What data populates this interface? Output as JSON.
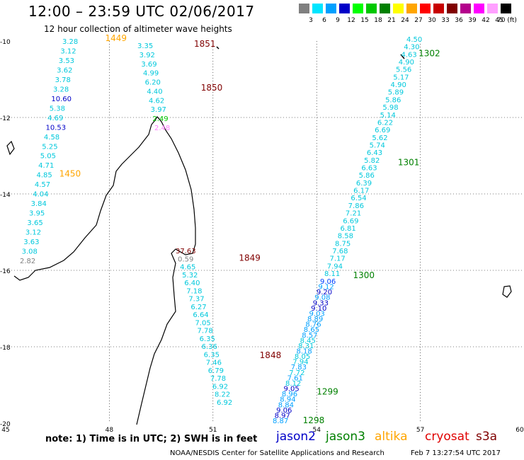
{
  "header": {
    "title": "12:00 – 23:59 UTC 02/06/2017",
    "subtitle": "12 hour collection of altimeter wave heights"
  },
  "legend": {
    "labels": [
      "3",
      "6",
      "9",
      "12",
      "15",
      "18",
      "21",
      "24",
      "27",
      "30",
      "33",
      "36",
      "39",
      "42",
      "45",
      "70"
    ],
    "unit": "(ft)",
    "colors": [
      "#808080",
      "#00e5ff",
      "#00a0ff",
      "#0000c8",
      "#00ff00",
      "#00c800",
      "#008000",
      "#ffff00",
      "#ffa500",
      "#ff0000",
      "#c80000",
      "#800000",
      "#b4008c",
      "#ff00ff",
      "#ffa0ff",
      "#000000"
    ]
  },
  "axes": {
    "x_ticks": [
      "45",
      "48",
      "51",
      "54",
      "57",
      "60"
    ],
    "y_ticks": [
      "-10",
      "-12",
      "-14",
      "-16",
      "-18",
      "-20"
    ]
  },
  "tracks": {
    "pass_1449": {
      "label": "1449",
      "color": "#ffa500",
      "lon": 47.88,
      "lat": -10.0
    },
    "pass_1450": {
      "label": "1450",
      "color": "#ffa500",
      "lon": 46.55,
      "lat": -13.55
    },
    "pass_1851": {
      "label": "1851",
      "color": "#800000",
      "lon": 50.45,
      "lat": -10.15
    },
    "pass_1850": {
      "label": "1850",
      "color": "#800000",
      "lon": 50.65,
      "lat": -11.3
    },
    "pass_1849": {
      "label": "1849",
      "color": "#800000",
      "lon": 51.75,
      "lat": -15.75
    },
    "pass_1848": {
      "label": "1848",
      "color": "#800000",
      "lon": 52.35,
      "lat": -18.3
    },
    "pass_1302": {
      "label": "1302",
      "color": "#008000",
      "lon": 56.95,
      "lat": -10.4
    },
    "pass_1301": {
      "label": "1301",
      "color": "#008000",
      "lon": 56.35,
      "lat": -13.25
    },
    "pass_1300": {
      "label": "1300",
      "color": "#008000",
      "lon": 55.05,
      "lat": -16.2
    },
    "pass_1299": {
      "label": "1299",
      "color": "#008000",
      "lon": 54.0,
      "lat": -19.25
    },
    "pass_1298": {
      "label": "1298",
      "color": "#008000",
      "lon": 53.6,
      "lat": -20.0
    }
  },
  "track_west": {
    "values": [
      "3.28",
      "3.12",
      "3.53",
      "3.62",
      "3.78",
      "3.28",
      "10.60",
      "5.38",
      "4.69",
      "10.53",
      "4.58",
      "5.25",
      "5.05",
      "4.71",
      "4.85",
      "4.57",
      "4.04",
      "3.84",
      "3.95",
      "3.65",
      "3.12",
      "3.63",
      "3.08",
      "2.82"
    ],
    "colors": [
      "#00c8dc",
      "#00c8dc",
      "#00c8dc",
      "#00c8dc",
      "#00c8dc",
      "#00c8dc",
      "#0000c8",
      "#00c8dc",
      "#00c8dc",
      "#0000c8",
      "#00c8dc",
      "#00c8dc",
      "#00c8dc",
      "#00c8dc",
      "#00c8dc",
      "#00c8dc",
      "#00c8dc",
      "#00c8dc",
      "#00c8dc",
      "#00c8dc",
      "#00c8dc",
      "#00c8dc",
      "#00c8dc",
      "#808080"
    ]
  },
  "track_mid_north": {
    "values": [
      "3.35",
      "3.92",
      "3.69",
      "4.99",
      "6.20",
      "4.40",
      "4.62",
      "3.97",
      "2.49",
      "2.48"
    ],
    "colors": [
      "#00c8dc",
      "#00c8dc",
      "#00c8dc",
      "#00c8dc",
      "#00c8dc",
      "#00c8dc",
      "#00c8dc",
      "#00c8dc",
      "#00c800",
      "#ff80ff"
    ]
  },
  "track_mid_south": {
    "values": [
      "37.63",
      "0.59",
      "4.65",
      "5.32",
      "6.40",
      "7.18",
      "7.37",
      "6.27",
      "6.64",
      "7.05",
      "7.78",
      "6.35",
      "6.36",
      "6.35",
      "7.46",
      "6.79",
      "7.78",
      "6.92",
      "8.22",
      "6.92"
    ],
    "colors": [
      "#800000",
      "#808080",
      "#00c8dc",
      "#00c8dc",
      "#00c8dc",
      "#00c8dc",
      "#00c8dc",
      "#00c8dc",
      "#00c8dc",
      "#00c8dc",
      "#00c8dc",
      "#00c8dc",
      "#00c8dc",
      "#00c8dc",
      "#00c8dc",
      "#00c8dc",
      "#00c8dc",
      "#00c8dc",
      "#00c8dc",
      "#00c8dc"
    ]
  },
  "track_east_upper": {
    "values": [
      "4.50",
      "4.30",
      "4.63",
      "4.90",
      "5.56",
      "5.17",
      "4.90",
      "5.89",
      "5.86",
      "5.98",
      "5.14",
      "6.22",
      "6.69",
      "5.62",
      "5.74",
      "6.43",
      "5.82",
      "6.63",
      "5.86",
      "6.39",
      "6.17",
      "6.54",
      "7.86",
      "7.21",
      "6.69",
      "6.81",
      "8.58",
      "8.75",
      "7.68",
      "7.17",
      "7.94",
      "8.11"
    ]
  },
  "track_east_lower": {
    "values": [
      "9.06",
      "9.12",
      "9.20",
      "9.08",
      "9.33",
      "9.10",
      "9.03",
      "8.89",
      "8.76",
      "8.65",
      "8.57",
      "8.45",
      "8.31",
      "8.18",
      "8.05",
      "7.94",
      "7.83",
      "7.72",
      "7.61",
      "8.12",
      "9.05",
      "8.96",
      "8.94",
      "8.84",
      "9.06",
      "8.97",
      "8.87"
    ],
    "colors": [
      "#0040ff",
      "#00a0ff",
      "#0000c8",
      "#00a0ff",
      "#0000c8",
      "#0000c8",
      "#00a0ff",
      "#00a0ff",
      "#00a0ff",
      "#00a0ff",
      "#00a0ff",
      "#00c8dc",
      "#00c8dc",
      "#00a0ff",
      "#00c8dc",
      "#00c8dc",
      "#00a0ff",
      "#00c8dc",
      "#00a0ff",
      "#00c8dc",
      "#0000c8",
      "#00a0ff",
      "#00a0ff",
      "#00a0ff",
      "#0000c8",
      "#0000c8",
      "#00a0ff"
    ]
  },
  "note": "note:  1) Time is in UTC;  2) SWH is in feet",
  "satellites": [
    {
      "name": "jason2",
      "color": "#0000c8"
    },
    {
      "name": "jason3",
      "color": "#008000"
    },
    {
      "name": "altika",
      "color": "#ffa500"
    },
    {
      "name": "cryosat",
      "color": "#e00000"
    },
    {
      "name": "s3a",
      "color": "#800000"
    }
  ],
  "footer": {
    "credit": "NOAA/NESDIS Center for Satellite Applications and Research",
    "timestamp": "Feb  7 13:27:54 UTC 2017"
  }
}
